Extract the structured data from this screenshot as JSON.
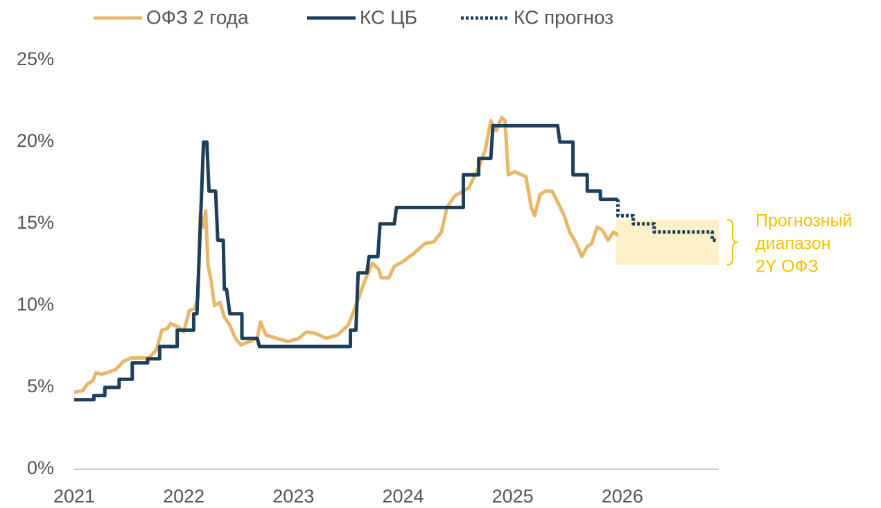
{
  "chart_data": {
    "type": "line",
    "xlim": [
      2021,
      2026.88
    ],
    "xticks": [
      2021,
      2022,
      2023,
      2024,
      2025,
      2026
    ],
    "ylim": [
      0,
      25
    ],
    "yticks": [
      {
        "value": 0,
        "label": "0%"
      },
      {
        "value": 5,
        "label": "5%"
      },
      {
        "value": 10,
        "label": "10%"
      },
      {
        "value": 15,
        "label": "15%"
      },
      {
        "value": 20,
        "label": "20%"
      },
      {
        "value": 25,
        "label": "25%"
      }
    ],
    "legend": "top",
    "series": [
      {
        "name": "ОФЗ 2 года",
        "color": "#e8b76a",
        "style": "solid",
        "x": [
          2021.0,
          2021.08,
          2021.12,
          2021.17,
          2021.2,
          2021.25,
          2021.3,
          2021.38,
          2021.45,
          2021.52,
          2021.6,
          2021.68,
          2021.75,
          2021.8,
          2021.85,
          2021.88,
          2021.95,
          2022.0,
          2022.05,
          2022.1,
          2022.13,
          2022.15,
          2022.18,
          2022.2,
          2022.22,
          2022.25,
          2022.28,
          2022.33,
          2022.37,
          2022.42,
          2022.47,
          2022.52,
          2022.6,
          2022.67,
          2022.7,
          2022.75,
          2022.85,
          2022.95,
          2023.05,
          2023.12,
          2023.2,
          2023.3,
          2023.4,
          2023.5,
          2023.58,
          2023.65,
          2023.72,
          2023.78,
          2023.8,
          2023.87,
          2023.92,
          2024.0,
          2024.1,
          2024.2,
          2024.28,
          2024.35,
          2024.4,
          2024.47,
          2024.52,
          2024.6,
          2024.68,
          2024.75,
          2024.8,
          2024.85,
          2024.9,
          2024.93,
          2024.96,
          2025.02,
          2025.08,
          2025.12,
          2025.17,
          2025.2,
          2025.25,
          2025.3,
          2025.36,
          2025.42,
          2025.47,
          2025.52,
          2025.58,
          2025.63,
          2025.68,
          2025.72,
          2025.77,
          2025.82,
          2025.87,
          2025.92,
          2025.96
        ],
        "values": [
          4.7,
          4.8,
          5.2,
          5.4,
          5.9,
          5.8,
          5.9,
          6.1,
          6.6,
          6.8,
          6.8,
          6.8,
          7.3,
          8.5,
          8.6,
          8.9,
          8.7,
          8.4,
          9.7,
          9.8,
          10.5,
          15.6,
          14.8,
          15.8,
          12.5,
          11.5,
          10.0,
          10.2,
          9.3,
          8.8,
          8.0,
          7.6,
          7.8,
          8.0,
          9.0,
          8.2,
          8.0,
          7.8,
          8.0,
          8.4,
          8.3,
          8.0,
          8.2,
          8.8,
          10.2,
          11.5,
          12.6,
          12.2,
          11.7,
          11.7,
          12.4,
          12.7,
          13.2,
          13.8,
          13.9,
          14.5,
          16.0,
          16.7,
          16.9,
          17.2,
          18.3,
          19.5,
          21.3,
          20.7,
          21.5,
          21.3,
          18.0,
          18.2,
          18.0,
          17.9,
          16.0,
          15.5,
          16.8,
          17.0,
          17.0,
          16.2,
          15.5,
          14.5,
          13.8,
          13.0,
          13.6,
          13.8,
          14.8,
          14.6,
          14.0,
          14.5,
          14.3
        ]
      },
      {
        "name": "КС ЦБ",
        "color": "#1b3f5c",
        "style": "solid",
        "x": [
          2021.0,
          2021.18,
          2021.18,
          2021.28,
          2021.28,
          2021.41,
          2021.41,
          2021.53,
          2021.53,
          2021.67,
          2021.67,
          2021.78,
          2021.78,
          2021.94,
          2021.94,
          2022.09,
          2022.09,
          2022.12,
          2022.18,
          2022.21,
          2022.23,
          2022.29,
          2022.31,
          2022.36,
          2022.37,
          2022.39,
          2022.42,
          2022.53,
          2022.53,
          2022.67,
          2022.69,
          2023.52,
          2023.52,
          2023.57,
          2023.59,
          2023.67,
          2023.69,
          2023.77,
          2023.79,
          2023.92,
          2023.94,
          2024.55,
          2024.55,
          2024.69,
          2024.69,
          2024.8,
          2024.82,
          2025.41,
          2025.43,
          2025.55,
          2025.55,
          2025.68,
          2025.68,
          2025.8,
          2025.8,
          2025.96
        ],
        "values": [
          4.25,
          4.25,
          4.5,
          4.5,
          5.0,
          5.0,
          5.5,
          5.5,
          6.5,
          6.5,
          6.75,
          6.75,
          7.5,
          7.5,
          8.5,
          8.5,
          9.5,
          9.5,
          20,
          20,
          17,
          17,
          14,
          14,
          11,
          11,
          9.5,
          9.5,
          8,
          8,
          7.5,
          7.5,
          8.5,
          8.5,
          12,
          12,
          13,
          13,
          15,
          15,
          16,
          16,
          18,
          18,
          19,
          19,
          21,
          21,
          20,
          20,
          18,
          18,
          17,
          17,
          16.5,
          16.5
        ]
      },
      {
        "name": "КС прогноз",
        "color": "#1b3f5c",
        "style": "dotted",
        "x": [
          2025.96,
          2025.96,
          2026.1,
          2026.1,
          2026.29,
          2026.29,
          2026.82,
          2026.82,
          2026.86
        ],
        "values": [
          16.5,
          15.5,
          15.5,
          15,
          15,
          14.5,
          14.5,
          14,
          14
        ]
      }
    ],
    "forecast_range": {
      "x": [
        2025.94,
        2026.88
      ],
      "y": [
        12.5,
        15.25
      ],
      "color": "#fdf0c8",
      "label_color": "#f5c000",
      "label": [
        "Прогнозный",
        "диапазон",
        "2Y ОФЗ"
      ]
    }
  }
}
